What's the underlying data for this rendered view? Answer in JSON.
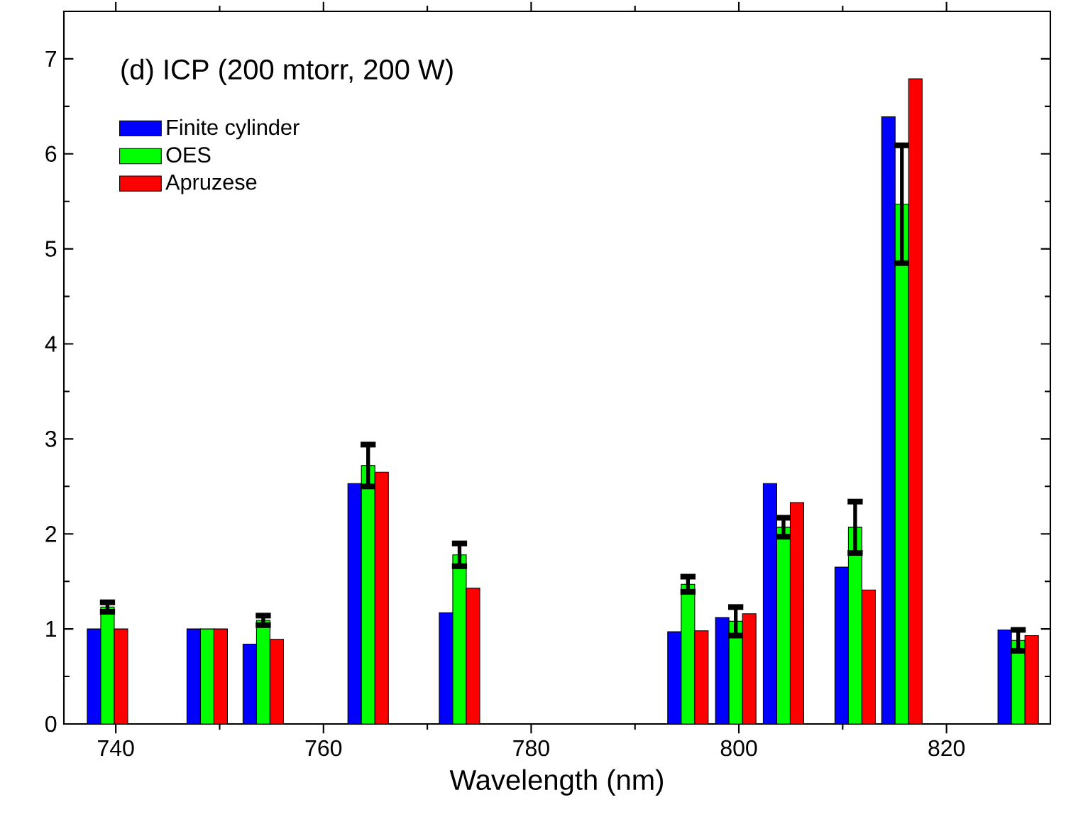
{
  "chart_data": {
    "type": "bar",
    "title": "(d) ICP (200 mtorr, 200 W)",
    "xlabel": "Wavelength (nm)",
    "x": [
      739.2,
      748.8,
      754.2,
      764.3,
      773.1,
      795.1,
      799.7,
      804.3,
      811.2,
      815.7,
      826.9
    ],
    "series": [
      {
        "name": "Finite cylinder",
        "color": "#0000ff",
        "values": [
          1.0,
          1.0,
          0.84,
          2.53,
          1.17,
          0.97,
          1.12,
          2.53,
          1.65,
          6.39,
          0.99
        ]
      },
      {
        "name": "OES",
        "color": "#00ff00",
        "values": [
          1.23,
          1.0,
          1.09,
          2.72,
          1.78,
          1.47,
          1.08,
          2.07,
          2.07,
          5.47,
          0.88
        ],
        "errors": [
          0.05,
          null,
          0.05,
          0.22,
          0.12,
          0.08,
          0.15,
          0.1,
          0.27,
          0.62,
          0.11
        ]
      },
      {
        "name": "Apruzese",
        "color": "#ff0000",
        "values": [
          1.0,
          1.0,
          0.89,
          2.65,
          1.43,
          0.98,
          1.16,
          2.33,
          1.41,
          6.79,
          0.93
        ]
      }
    ],
    "xlim": [
      735,
      830
    ],
    "xticks": [
      740,
      760,
      780,
      800,
      820
    ],
    "ylim": [
      0,
      7.5
    ],
    "yticks": [
      0,
      1,
      2,
      3,
      4,
      5,
      6,
      7
    ],
    "legend": "top left",
    "grid": false
  }
}
